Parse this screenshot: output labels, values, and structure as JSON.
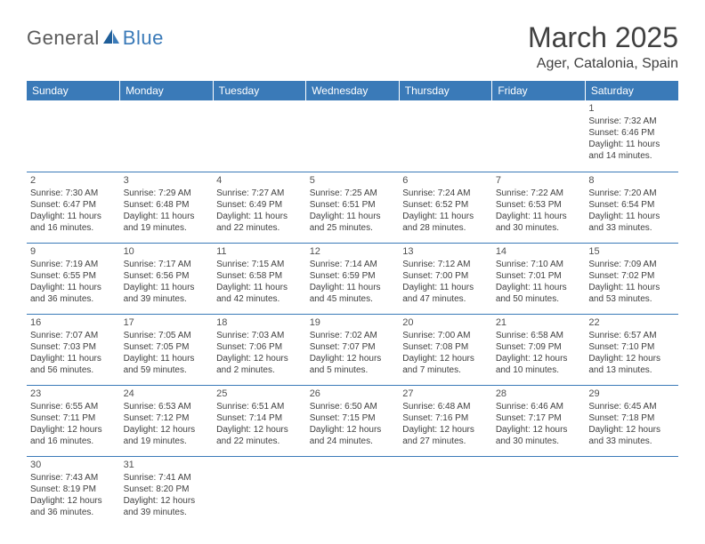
{
  "logo": {
    "part1": "General",
    "part2": "Blue"
  },
  "title": "March 2025",
  "location": "Ager, Catalonia, Spain",
  "headerColor": "#3a7ab8",
  "dow": [
    "Sunday",
    "Monday",
    "Tuesday",
    "Wednesday",
    "Thursday",
    "Friday",
    "Saturday"
  ],
  "weeks": [
    [
      null,
      null,
      null,
      null,
      null,
      null,
      {
        "d": "1",
        "sr": "7:32 AM",
        "ss": "6:46 PM",
        "dl": "11 hours and 14 minutes."
      }
    ],
    [
      {
        "d": "2",
        "sr": "7:30 AM",
        "ss": "6:47 PM",
        "dl": "11 hours and 16 minutes."
      },
      {
        "d": "3",
        "sr": "7:29 AM",
        "ss": "6:48 PM",
        "dl": "11 hours and 19 minutes."
      },
      {
        "d": "4",
        "sr": "7:27 AM",
        "ss": "6:49 PM",
        "dl": "11 hours and 22 minutes."
      },
      {
        "d": "5",
        "sr": "7:25 AM",
        "ss": "6:51 PM",
        "dl": "11 hours and 25 minutes."
      },
      {
        "d": "6",
        "sr": "7:24 AM",
        "ss": "6:52 PM",
        "dl": "11 hours and 28 minutes."
      },
      {
        "d": "7",
        "sr": "7:22 AM",
        "ss": "6:53 PM",
        "dl": "11 hours and 30 minutes."
      },
      {
        "d": "8",
        "sr": "7:20 AM",
        "ss": "6:54 PM",
        "dl": "11 hours and 33 minutes."
      }
    ],
    [
      {
        "d": "9",
        "sr": "7:19 AM",
        "ss": "6:55 PM",
        "dl": "11 hours and 36 minutes."
      },
      {
        "d": "10",
        "sr": "7:17 AM",
        "ss": "6:56 PM",
        "dl": "11 hours and 39 minutes."
      },
      {
        "d": "11",
        "sr": "7:15 AM",
        "ss": "6:58 PM",
        "dl": "11 hours and 42 minutes."
      },
      {
        "d": "12",
        "sr": "7:14 AM",
        "ss": "6:59 PM",
        "dl": "11 hours and 45 minutes."
      },
      {
        "d": "13",
        "sr": "7:12 AM",
        "ss": "7:00 PM",
        "dl": "11 hours and 47 minutes."
      },
      {
        "d": "14",
        "sr": "7:10 AM",
        "ss": "7:01 PM",
        "dl": "11 hours and 50 minutes."
      },
      {
        "d": "15",
        "sr": "7:09 AM",
        "ss": "7:02 PM",
        "dl": "11 hours and 53 minutes."
      }
    ],
    [
      {
        "d": "16",
        "sr": "7:07 AM",
        "ss": "7:03 PM",
        "dl": "11 hours and 56 minutes."
      },
      {
        "d": "17",
        "sr": "7:05 AM",
        "ss": "7:05 PM",
        "dl": "11 hours and 59 minutes."
      },
      {
        "d": "18",
        "sr": "7:03 AM",
        "ss": "7:06 PM",
        "dl": "12 hours and 2 minutes."
      },
      {
        "d": "19",
        "sr": "7:02 AM",
        "ss": "7:07 PM",
        "dl": "12 hours and 5 minutes."
      },
      {
        "d": "20",
        "sr": "7:00 AM",
        "ss": "7:08 PM",
        "dl": "12 hours and 7 minutes."
      },
      {
        "d": "21",
        "sr": "6:58 AM",
        "ss": "7:09 PM",
        "dl": "12 hours and 10 minutes."
      },
      {
        "d": "22",
        "sr": "6:57 AM",
        "ss": "7:10 PM",
        "dl": "12 hours and 13 minutes."
      }
    ],
    [
      {
        "d": "23",
        "sr": "6:55 AM",
        "ss": "7:11 PM",
        "dl": "12 hours and 16 minutes."
      },
      {
        "d": "24",
        "sr": "6:53 AM",
        "ss": "7:12 PM",
        "dl": "12 hours and 19 minutes."
      },
      {
        "d": "25",
        "sr": "6:51 AM",
        "ss": "7:14 PM",
        "dl": "12 hours and 22 minutes."
      },
      {
        "d": "26",
        "sr": "6:50 AM",
        "ss": "7:15 PM",
        "dl": "12 hours and 24 minutes."
      },
      {
        "d": "27",
        "sr": "6:48 AM",
        "ss": "7:16 PM",
        "dl": "12 hours and 27 minutes."
      },
      {
        "d": "28",
        "sr": "6:46 AM",
        "ss": "7:17 PM",
        "dl": "12 hours and 30 minutes."
      },
      {
        "d": "29",
        "sr": "6:45 AM",
        "ss": "7:18 PM",
        "dl": "12 hours and 33 minutes."
      }
    ],
    [
      {
        "d": "30",
        "sr": "7:43 AM",
        "ss": "8:19 PM",
        "dl": "12 hours and 36 minutes."
      },
      {
        "d": "31",
        "sr": "7:41 AM",
        "ss": "8:20 PM",
        "dl": "12 hours and 39 minutes."
      },
      null,
      null,
      null,
      null,
      null
    ]
  ]
}
